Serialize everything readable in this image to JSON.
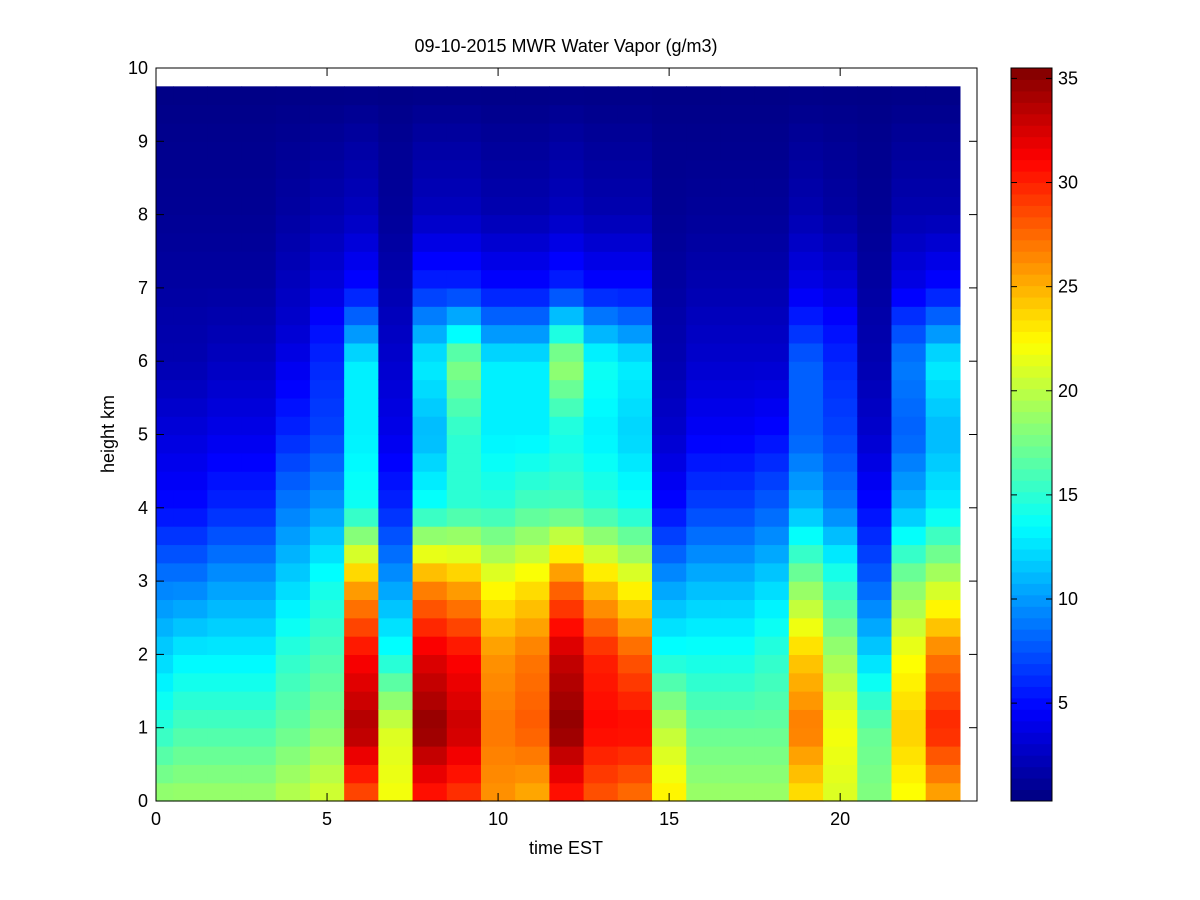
{
  "chart_data": {
    "type": "heatmap",
    "title": "09-10-2015 MWR Water Vapor (g/m3)",
    "xlabel": "time EST",
    "ylabel": "height km",
    "xlim": [
      0,
      24
    ],
    "ylim": [
      0,
      10
    ],
    "x_ticks": [
      0,
      5,
      10,
      15,
      20
    ],
    "y_ticks": [
      0,
      1,
      2,
      3,
      4,
      5,
      6,
      7,
      8,
      9,
      10
    ],
    "colorbar": {
      "colormap": "jet",
      "range": [
        0.3,
        35.5
      ],
      "ticks": [
        5,
        10,
        15,
        20,
        25,
        30,
        35
      ]
    },
    "time_hours": [
      0.5,
      1.5,
      2.5,
      3.5,
      4.5,
      5.5,
      6.5,
      7.5,
      8.5,
      9.5,
      10.5,
      11.5,
      12.5,
      13.5,
      14.5,
      15.5,
      16.5,
      17.5,
      18.5,
      19.5,
      20.5,
      21.5,
      22.5,
      23.5
    ],
    "profile_heights_km": [
      0,
      1,
      2,
      3,
      4,
      5,
      6,
      6.5,
      7,
      8,
      9,
      9.75
    ],
    "water_vapor_profiles": [
      [
        19,
        15,
        12,
        9,
        5,
        3.5,
        2,
        1.8,
        1.5,
        1,
        0.8,
        0.5
      ],
      [
        19,
        16,
        13,
        9,
        5,
        3.5,
        2,
        1.8,
        1.5,
        1,
        0.8,
        0.5
      ],
      [
        19,
        16,
        13,
        10,
        6,
        4,
        2.5,
        2,
        1.5,
        1,
        0.8,
        0.5
      ],
      [
        19,
        16,
        13,
        10,
        6,
        4,
        2.5,
        2,
        1.5,
        1,
        0.8,
        0.5
      ],
      [
        20,
        17,
        15,
        12,
        9,
        6,
        4,
        3,
        2.5,
        1.5,
        1,
        0.5
      ],
      [
        21,
        18,
        16,
        14,
        10,
        7,
        6,
        5,
        3.5,
        2,
        1.2,
        0.5
      ],
      [
        28,
        34,
        31,
        25,
        14,
        13,
        13,
        9,
        5,
        2.5,
        1.5,
        0.5
      ],
      [
        22,
        21,
        14,
        10,
        6,
        4,
        3,
        2.5,
        2,
        1.2,
        1,
        0.5
      ],
      [
        30,
        35,
        32,
        26,
        14,
        11,
        13,
        10,
        6,
        2.5,
        1.5,
        0.5
      ],
      [
        29,
        33,
        31,
        25,
        15,
        15,
        18,
        12,
        6,
        2.5,
        1.5,
        0.5
      ],
      [
        26,
        27,
        26,
        22,
        15,
        13,
        13,
        9,
        5,
        2,
        1.2,
        0.5
      ],
      [
        25,
        28,
        27,
        23,
        16,
        13,
        13,
        9,
        5,
        2,
        1.2,
        0.5
      ],
      [
        30,
        35,
        33,
        27,
        16,
        14,
        19,
        13,
        6,
        2.5,
        1.5,
        0.5
      ],
      [
        28,
        31,
        30,
        24,
        15,
        13,
        14,
        10,
        5,
        2,
        1.2,
        0.5
      ],
      [
        27,
        31,
        28,
        22,
        14,
        12,
        13,
        9,
        5,
        2,
        1.2,
        0.5
      ],
      [
        23,
        20,
        14,
        10,
        5,
        3,
        2,
        1.8,
        1.5,
        1,
        0.8,
        0.5
      ],
      [
        19,
        17,
        14,
        11,
        7,
        4.5,
        3,
        2.5,
        2,
        1.2,
        0.8,
        0.5
      ],
      [
        19,
        17,
        14,
        11,
        7,
        4.5,
        3,
        2.5,
        2,
        1.2,
        0.8,
        0.5
      ],
      [
        19,
        17,
        15,
        12,
        8,
        5,
        3,
        2.5,
        2,
        1.2,
        0.8,
        0.5
      ],
      [
        23,
        27,
        24,
        18,
        11,
        8,
        8,
        6,
        4,
        2,
        1.2,
        0.5
      ],
      [
        21,
        22,
        19,
        15,
        9,
        7,
        6,
        5,
        3.5,
        1.5,
        1,
        0.5
      ],
      [
        18,
        17,
        12,
        8,
        5,
        3,
        2,
        1.8,
        1.5,
        1,
        0.8,
        0.5
      ],
      [
        22,
        24,
        22,
        18,
        11,
        8,
        9,
        7,
        4,
        2,
        1.2,
        0.5
      ],
      [
        25,
        30,
        27,
        20,
        13,
        11,
        13,
        9,
        5,
        2,
        1.2,
        0.5
      ]
    ],
    "data_top_km": 9.75,
    "data_left_hours": 0,
    "data_right_hours": 23.5
  }
}
